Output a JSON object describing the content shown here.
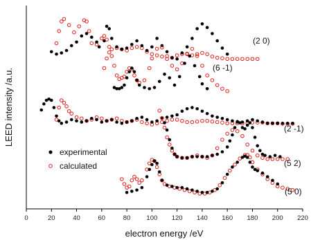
{
  "chart_data": {
    "type": "scatter",
    "xlabel": "electron energy /eV",
    "ylabel": "LEED intensity /a.u.",
    "xlim": [
      0,
      220
    ],
    "x_ticks": [
      0,
      20,
      40,
      60,
      80,
      100,
      120,
      140,
      160,
      180,
      200,
      220
    ],
    "y_ticks_shown": false,
    "grid": false,
    "legend": {
      "position": "left-middle",
      "entries": [
        {
          "label": "experimental",
          "marker": "filled-circle",
          "color": "#000000"
        },
        {
          "label": "calculated",
          "marker": "open-circle",
          "color": "#e0201b"
        }
      ]
    },
    "curves": [
      {
        "name": "(2 0)",
        "offset": 4,
        "experimental": {
          "x": [
            20,
            24,
            28,
            32,
            36,
            40,
            44,
            48,
            52,
            56,
            58,
            62,
            64,
            66,
            68,
            72,
            76,
            80,
            84,
            88,
            92,
            96,
            100,
            104,
            108,
            112,
            116,
            120,
            124,
            128,
            132,
            136,
            140,
            144,
            148,
            152,
            156,
            160
          ],
          "y": [
            0.15,
            0.05,
            0.1,
            0.2,
            0.4,
            0.55,
            0.8,
            0.9,
            0.75,
            0.55,
            0.35,
            0.6,
            1.2,
            1.1,
            0.7,
            0.35,
            0.25,
            0.3,
            0.45,
            0.6,
            0.4,
            0.2,
            0.35,
            0.7,
            0.4,
            0.15,
            -0.1,
            -0.15,
            0.1,
            0.35,
            0.7,
            1.1,
            1.3,
            1.15,
            0.9,
            0.6,
            0.3,
            0.05
          ]
        },
        "calculated": {
          "x": [
            24,
            26,
            28,
            30,
            34,
            38,
            42,
            46,
            48,
            50,
            52,
            56,
            60,
            62,
            64,
            66,
            68,
            72,
            76,
            80,
            84,
            88,
            92,
            96,
            100,
            104,
            108,
            112,
            116,
            120,
            124,
            128,
            132,
            136,
            140,
            144,
            148,
            152,
            156,
            160,
            164,
            168,
            172,
            176,
            180,
            184
          ],
          "y": [
            0.5,
            1.0,
            1.4,
            1.5,
            1.25,
            0.95,
            1.2,
            1.45,
            1.4,
            1.0,
            0.5,
            0.45,
            0.7,
            0.8,
            0.65,
            0.35,
            0.25,
            0.3,
            0.25,
            0.2,
            0.3,
            0.35,
            0.3,
            0.15,
            0.05,
            0.0,
            -0.05,
            -0.15,
            -0.1,
            0.0,
            0.05,
            0.05,
            0.0,
            0.05,
            0.1,
            0.05,
            -0.05,
            -0.1,
            -0.12,
            -0.15,
            -0.15,
            -0.15,
            -0.15,
            -0.15,
            -0.15,
            -0.15
          ]
        }
      },
      {
        "name": "(6 -1)",
        "offset": 3,
        "experimental": {
          "x": [
            70,
            72,
            74,
            76,
            78,
            80,
            82,
            84,
            86,
            88,
            90,
            94,
            98,
            102,
            106,
            110,
            114,
            118,
            122,
            126,
            130,
            134,
            138,
            140,
            144
          ],
          "y": [
            0.1,
            0.05,
            0.05,
            0.1,
            0.2,
            0.5,
            0.75,
            0.9,
            0.75,
            0.4,
            0.2,
            0.1,
            0.05,
            0.1,
            0.35,
            0.65,
            0.5,
            0.2,
            0.55,
            1.1,
            1.4,
            1.0,
            0.55,
            0.25,
            0.05
          ]
        },
        "calculated": {
          "x": [
            62,
            64,
            66,
            68,
            70,
            72,
            74,
            76,
            78,
            80,
            82,
            84,
            86,
            88,
            90,
            94,
            98,
            100,
            104,
            108,
            112,
            116,
            120,
            124,
            128,
            132,
            136,
            140,
            144,
            148,
            152,
            156,
            160
          ],
          "y": [
            0.9,
            1.3,
            1.55,
            1.4,
            1.0,
            0.6,
            0.45,
            0.5,
            0.55,
            0.75,
            0.9,
            0.85,
            0.6,
            0.4,
            0.3,
            0.4,
            0.9,
            1.3,
            1.7,
            1.75,
            1.4,
            1.0,
            0.85,
            1.1,
            1.5,
            1.7,
            1.4,
            1.0,
            0.6,
            0.4,
            0.2,
            0.05,
            -0.05
          ]
        }
      },
      {
        "name": "(2 -1)",
        "offset": 2,
        "experimental": {
          "x": [
            12,
            14,
            16,
            18,
            20,
            22,
            24,
            26,
            28,
            32,
            36,
            40,
            44,
            48,
            52,
            56,
            60,
            64,
            68,
            72,
            76,
            80,
            84,
            88,
            92,
            96,
            100,
            104,
            108,
            112,
            116,
            120,
            124,
            128,
            132,
            136,
            140,
            144,
            148,
            152,
            156,
            160,
            164,
            168,
            172,
            176,
            180,
            184,
            188,
            192,
            196,
            200,
            204,
            208,
            212
          ],
          "y": [
            0.6,
            0.85,
            1.0,
            1.05,
            1.0,
            0.7,
            0.35,
            0.15,
            0.05,
            0.1,
            0.2,
            0.15,
            0.1,
            0.15,
            0.25,
            0.2,
            0.1,
            0.15,
            0.2,
            0.1,
            0.05,
            0.1,
            0.15,
            0.25,
            0.3,
            0.2,
            0.1,
            0.15,
            0.25,
            0.3,
            0.35,
            0.4,
            0.55,
            0.65,
            0.7,
            0.65,
            0.55,
            0.45,
            0.35,
            0.3,
            0.25,
            0.2,
            0.15,
            0.1,
            0.1,
            0.15,
            0.2,
            0.15,
            0.1,
            0.05,
            0.05,
            0.05,
            0.05,
            0.05,
            0.05
          ]
        },
        "calculated": {
          "x": [
            24,
            26,
            28,
            30,
            32,
            34,
            36,
            40,
            44,
            48,
            52,
            56,
            60,
            64,
            68,
            72,
            76,
            80,
            84,
            88,
            92,
            96,
            100,
            104,
            108,
            112,
            116,
            120,
            124,
            128,
            132,
            136,
            140,
            144,
            148,
            152,
            156,
            160,
            164,
            168,
            172,
            176,
            180,
            184,
            188,
            192,
            196,
            200,
            204,
            208,
            212
          ],
          "y": [
            0.2,
            0.7,
            1.0,
            0.9,
            0.75,
            0.55,
            0.45,
            0.3,
            0.25,
            0.15,
            0.2,
            0.3,
            0.25,
            0.15,
            0.2,
            0.25,
            0.15,
            0.1,
            0.15,
            0.2,
            0.1,
            0.05,
            0.0,
            0.05,
            0.1,
            0.15,
            0.2,
            0.2,
            0.15,
            0.1,
            0.1,
            0.12,
            0.15,
            0.15,
            0.12,
            0.1,
            0.08,
            0.05,
            0.05,
            0.05,
            0.05,
            0.05,
            0.08,
            0.08,
            0.08,
            0.05,
            0.05,
            0.05,
            0.03,
            0.03,
            0.03
          ]
        }
      },
      {
        "name": "(5 2)",
        "offset": 1,
        "experimental": {
          "x": [
            110,
            112,
            114,
            116,
            118,
            120,
            124,
            128,
            132,
            136,
            140,
            144,
            148,
            152,
            156,
            160,
            162,
            164,
            166,
            168,
            170,
            172,
            174,
            176,
            178,
            180,
            182,
            184,
            186,
            188,
            190,
            194,
            198,
            202
          ],
          "y": [
            1.5,
            1.2,
            0.8,
            0.45,
            0.2,
            0.1,
            0.05,
            0.05,
            0.1,
            0.1,
            0.1,
            0.1,
            0.15,
            0.2,
            0.3,
            0.5,
            0.75,
            1.0,
            1.3,
            1.55,
            1.5,
            1.3,
            1.25,
            1.4,
            1.5,
            1.3,
            0.9,
            0.55,
            0.35,
            0.2,
            0.15,
            0.1,
            0.15,
            0.1
          ]
        },
        "calculated": {
          "x": [
            106,
            108,
            110,
            112,
            114,
            116,
            118,
            120,
            124,
            128,
            132,
            136,
            140,
            144,
            148,
            152,
            156,
            160,
            164,
            168,
            172,
            176,
            180,
            184,
            188,
            192,
            196,
            200,
            204,
            208
          ],
          "y": [
            2.0,
            1.7,
            1.3,
            0.9,
            0.6,
            0.35,
            0.2,
            0.1,
            0.05,
            0.05,
            0.1,
            0.15,
            0.1,
            0.05,
            0.15,
            0.45,
            0.8,
            1.05,
            1.2,
            1.15,
            0.95,
            0.6,
            0.35,
            0.15,
            0.05,
            0.0,
            0.0,
            0.0,
            0.0,
            0.0
          ]
        }
      },
      {
        "name": "(5 0)",
        "offset": 0,
        "experimental": {
          "x": [
            80,
            84,
            88,
            92,
            96,
            98,
            100,
            102,
            104,
            106,
            108,
            112,
            116,
            120,
            124,
            128,
            132,
            136,
            140,
            144,
            148,
            152,
            156,
            160,
            164,
            168,
            172,
            174,
            176,
            178,
            180,
            182,
            184,
            188,
            192,
            196,
            200
          ],
          "y": [
            0.05,
            0.1,
            0.15,
            0.25,
            0.7,
            1.0,
            1.2,
            1.35,
            1.25,
            0.9,
            0.55,
            0.35,
            0.3,
            0.25,
            0.25,
            0.2,
            0.15,
            0.1,
            0.05,
            0.05,
            0.1,
            0.2,
            0.45,
            0.8,
            1.1,
            1.3,
            1.5,
            1.55,
            1.5,
            1.3,
            1.1,
            1.0,
            0.95,
            0.85,
            0.7,
            0.55,
            0.4
          ]
        },
        "calculated": {
          "x": [
            76,
            78,
            80,
            82,
            84,
            86,
            88,
            90,
            92,
            96,
            98,
            100,
            102,
            104,
            106,
            108,
            110,
            114,
            118,
            122,
            126,
            130,
            134,
            138,
            142,
            146,
            150,
            154,
            158,
            162,
            166,
            170,
            174,
            176,
            178,
            180,
            184,
            188,
            192,
            196,
            200,
            204,
            208,
            212
          ],
          "y": [
            0.6,
            0.4,
            0.25,
            0.3,
            0.55,
            0.7,
            0.6,
            0.45,
            0.55,
            1.0,
            1.25,
            1.4,
            1.35,
            1.1,
            0.8,
            0.55,
            0.4,
            0.3,
            0.25,
            0.2,
            0.15,
            0.1,
            0.05,
            0.0,
            0.0,
            0.05,
            0.15,
            0.35,
            0.65,
            0.95,
            1.2,
            1.45,
            1.6,
            1.6,
            1.5,
            1.3,
            1.0,
            0.8,
            0.6,
            0.45,
            0.3,
            0.25,
            0.2,
            0.15
          ]
        }
      }
    ]
  }
}
